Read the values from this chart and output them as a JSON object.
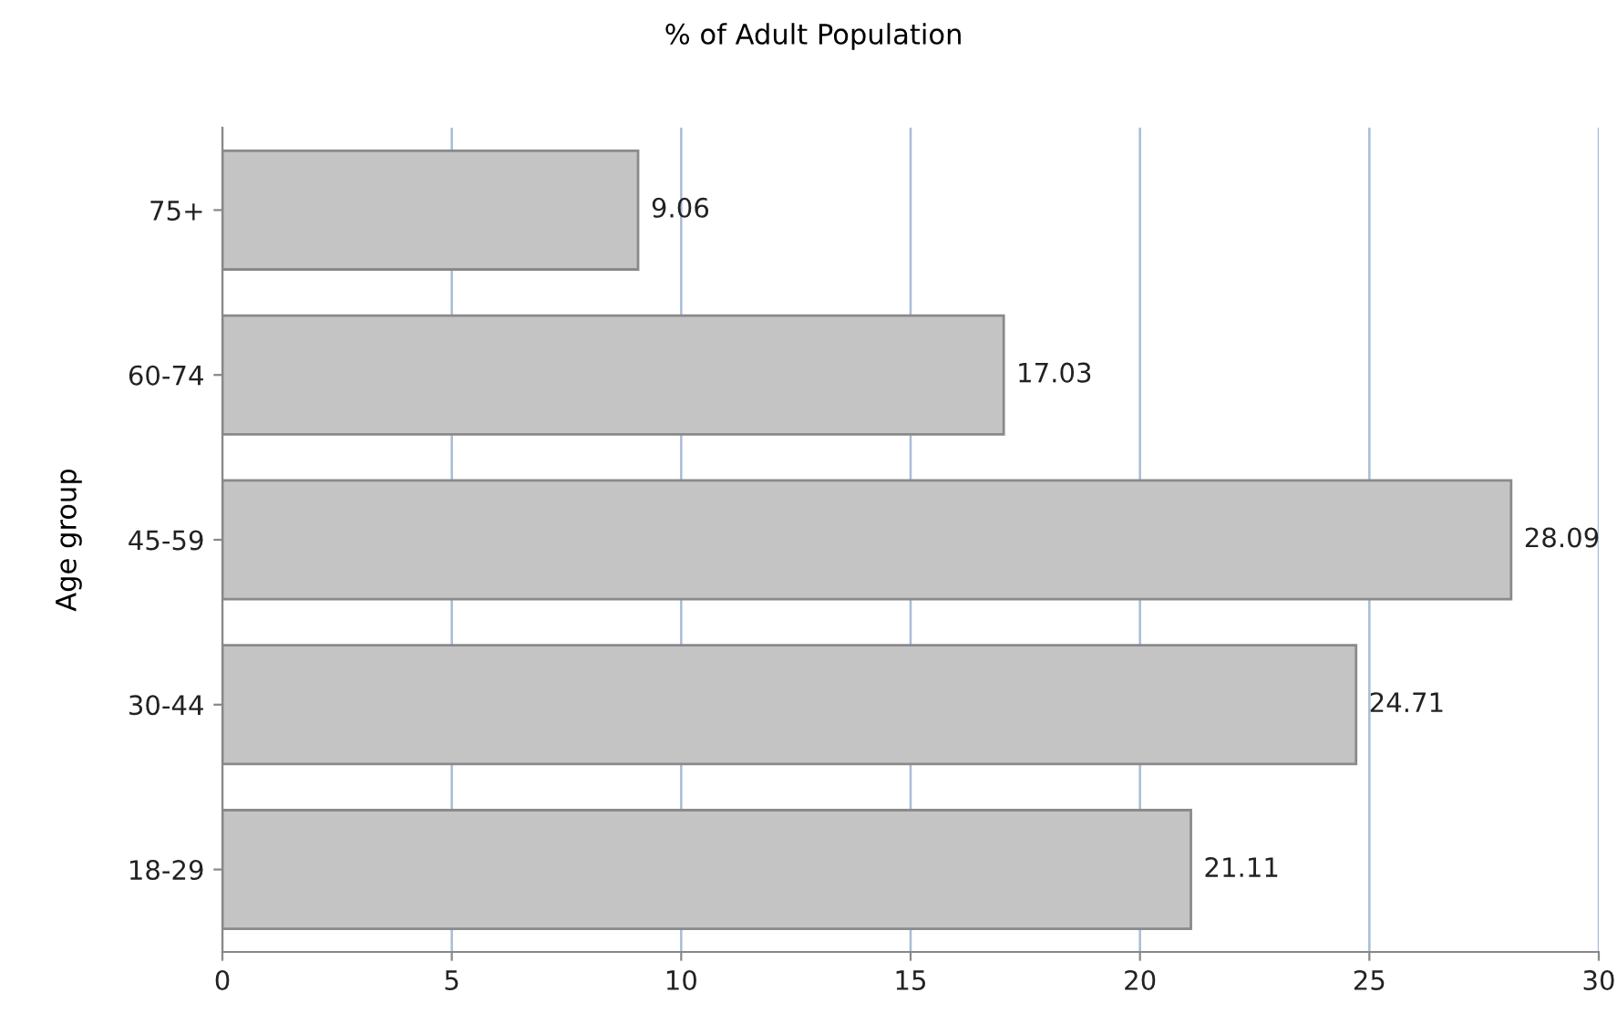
{
  "chart_data": {
    "type": "bar",
    "orientation": "horizontal",
    "title": "% of Adult Population",
    "ylabel": "Age group",
    "categories": [
      "75+",
      "60-74",
      "45-59",
      "30-44",
      "18-29"
    ],
    "values": [
      9.06,
      17.03,
      28.09,
      24.71,
      21.11
    ],
    "color": "#c4c4c4",
    "xlim": [
      0,
      30
    ],
    "xticks": [
      0,
      5,
      10,
      15,
      20,
      25,
      30
    ],
    "grid": "x",
    "data_labels": true
  }
}
